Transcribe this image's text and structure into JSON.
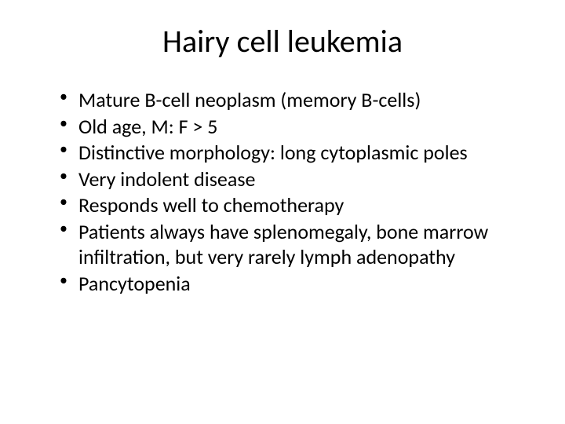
{
  "slide": {
    "title": "Hairy cell leukemia",
    "title_fontsize": 40,
    "body_fontsize": 26,
    "background_color": "#ffffff",
    "text_color": "#000000",
    "bullets": [
      "Mature B-cell neoplasm (memory B-cells)",
      "Old age, M: F > 5",
      "Distinctive morphology: long cytoplasmic poles",
      "Very indolent disease",
      "Responds well to chemotherapy",
      "Patients always have splenomegaly, bone marrow infiltration, but very rarely lymph adenopathy",
      "Pancytopenia"
    ]
  }
}
